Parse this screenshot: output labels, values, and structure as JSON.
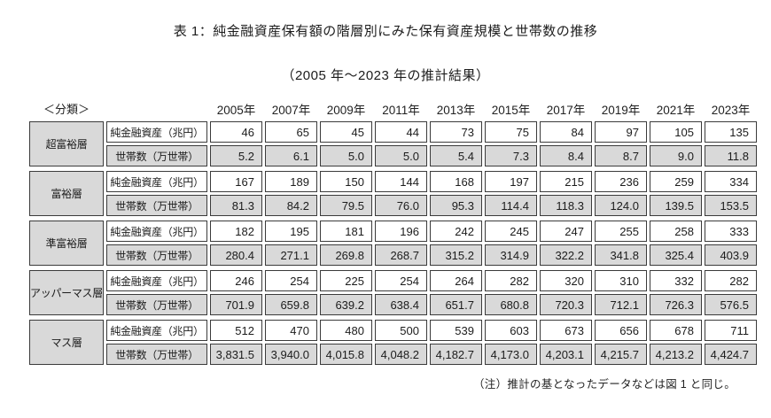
{
  "title": "表 1：純金融資産保有額の階層別にみた保有資産規模と世帯数の推移",
  "subtitle": "（2005 年～2023 年の推計結果）",
  "classification_label": "＜分類＞",
  "years": [
    "2005年",
    "2007年",
    "2009年",
    "2011年",
    "2013年",
    "2015年",
    "2017年",
    "2019年",
    "2021年",
    "2023年"
  ],
  "row_labels": {
    "assets": "純金融資産（兆円）",
    "households": "世帯数（万世帯）"
  },
  "tiers": [
    {
      "name": "超富裕層",
      "assets": [
        "46",
        "65",
        "45",
        "44",
        "73",
        "75",
        "84",
        "97",
        "105",
        "135"
      ],
      "households": [
        "5.2",
        "6.1",
        "5.0",
        "5.0",
        "5.4",
        "7.3",
        "8.4",
        "8.7",
        "9.0",
        "11.8"
      ]
    },
    {
      "name": "富裕層",
      "assets": [
        "167",
        "189",
        "150",
        "144",
        "168",
        "197",
        "215",
        "236",
        "259",
        "334"
      ],
      "households": [
        "81.3",
        "84.2",
        "79.5",
        "76.0",
        "95.3",
        "114.4",
        "118.3",
        "124.0",
        "139.5",
        "153.5"
      ]
    },
    {
      "name": "準富裕層",
      "assets": [
        "182",
        "195",
        "181",
        "196",
        "242",
        "245",
        "247",
        "255",
        "258",
        "333"
      ],
      "households": [
        "280.4",
        "271.1",
        "269.8",
        "268.7",
        "315.2",
        "314.9",
        "322.2",
        "341.8",
        "325.4",
        "403.9"
      ]
    },
    {
      "name": "アッパーマス層",
      "assets": [
        "246",
        "254",
        "225",
        "254",
        "264",
        "282",
        "320",
        "310",
        "332",
        "282"
      ],
      "households": [
        "701.9",
        "659.8",
        "639.2",
        "638.4",
        "651.7",
        "680.8",
        "720.3",
        "712.1",
        "726.3",
        "576.5"
      ]
    },
    {
      "name": "マス層",
      "assets": [
        "512",
        "470",
        "480",
        "500",
        "539",
        "603",
        "673",
        "656",
        "678",
        "711"
      ],
      "households": [
        "3,831.5",
        "3,940.0",
        "4,015.8",
        "4,048.2",
        "4,182.7",
        "4,173.0",
        "4,203.1",
        "4,215.7",
        "4,213.2",
        "4,424.7"
      ]
    }
  ],
  "footnote": "（注）推計の基となったデータなどは図 1 と同じ。",
  "colors": {
    "cell_gray": "#d9d9d9",
    "border": "#3b3b3b"
  }
}
